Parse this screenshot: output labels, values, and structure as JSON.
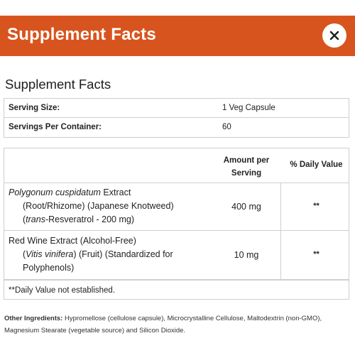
{
  "header": {
    "title": "Supplement Facts",
    "close_icon": "close-icon"
  },
  "panel_title": "Supplement Facts",
  "serving": {
    "size_label": "Serving Size:",
    "size_value": "1 Veg Capsule",
    "per_container_label": "Servings Per Container:",
    "per_container_value": "60"
  },
  "columns": {
    "amount_line1": "Amount per",
    "amount_line2": "Serving",
    "daily_value": "% Daily Value"
  },
  "ingredients": [
    {
      "name_italic": "Polygonum cuspidatum",
      "name_rest": " Extract",
      "line2": "(Root/Rhizome) (Japanese Knotweed)",
      "line3_open": "(",
      "line3_italic": "trans",
      "line3_rest": "-Resveratrol - 200 mg)",
      "amount": "400 mg",
      "daily_value": "**"
    },
    {
      "line1": "Red Wine Extract (Alcohol-Free)",
      "line2_open": "(",
      "line2_italic": "Vitis vinifera",
      "line2_rest": ") (Fruit) (Standardized for",
      "line3": "Polyphenols)",
      "amount": "10 mg",
      "daily_value": "**"
    }
  ],
  "footnote": "**Daily Value not established.",
  "other_ingredients": {
    "label": "Other Ingredients:",
    "text": " Hypromellose (cellulose capsule), Microcrystalline Cellulose, Maltodextrin (non-GMO), Magnesium Stearate (vegetable source) and Silicon Dioxide."
  },
  "colors": {
    "header_bg": "#d8541e",
    "header_text": "#ffffff",
    "border": "#cfcfcf"
  }
}
